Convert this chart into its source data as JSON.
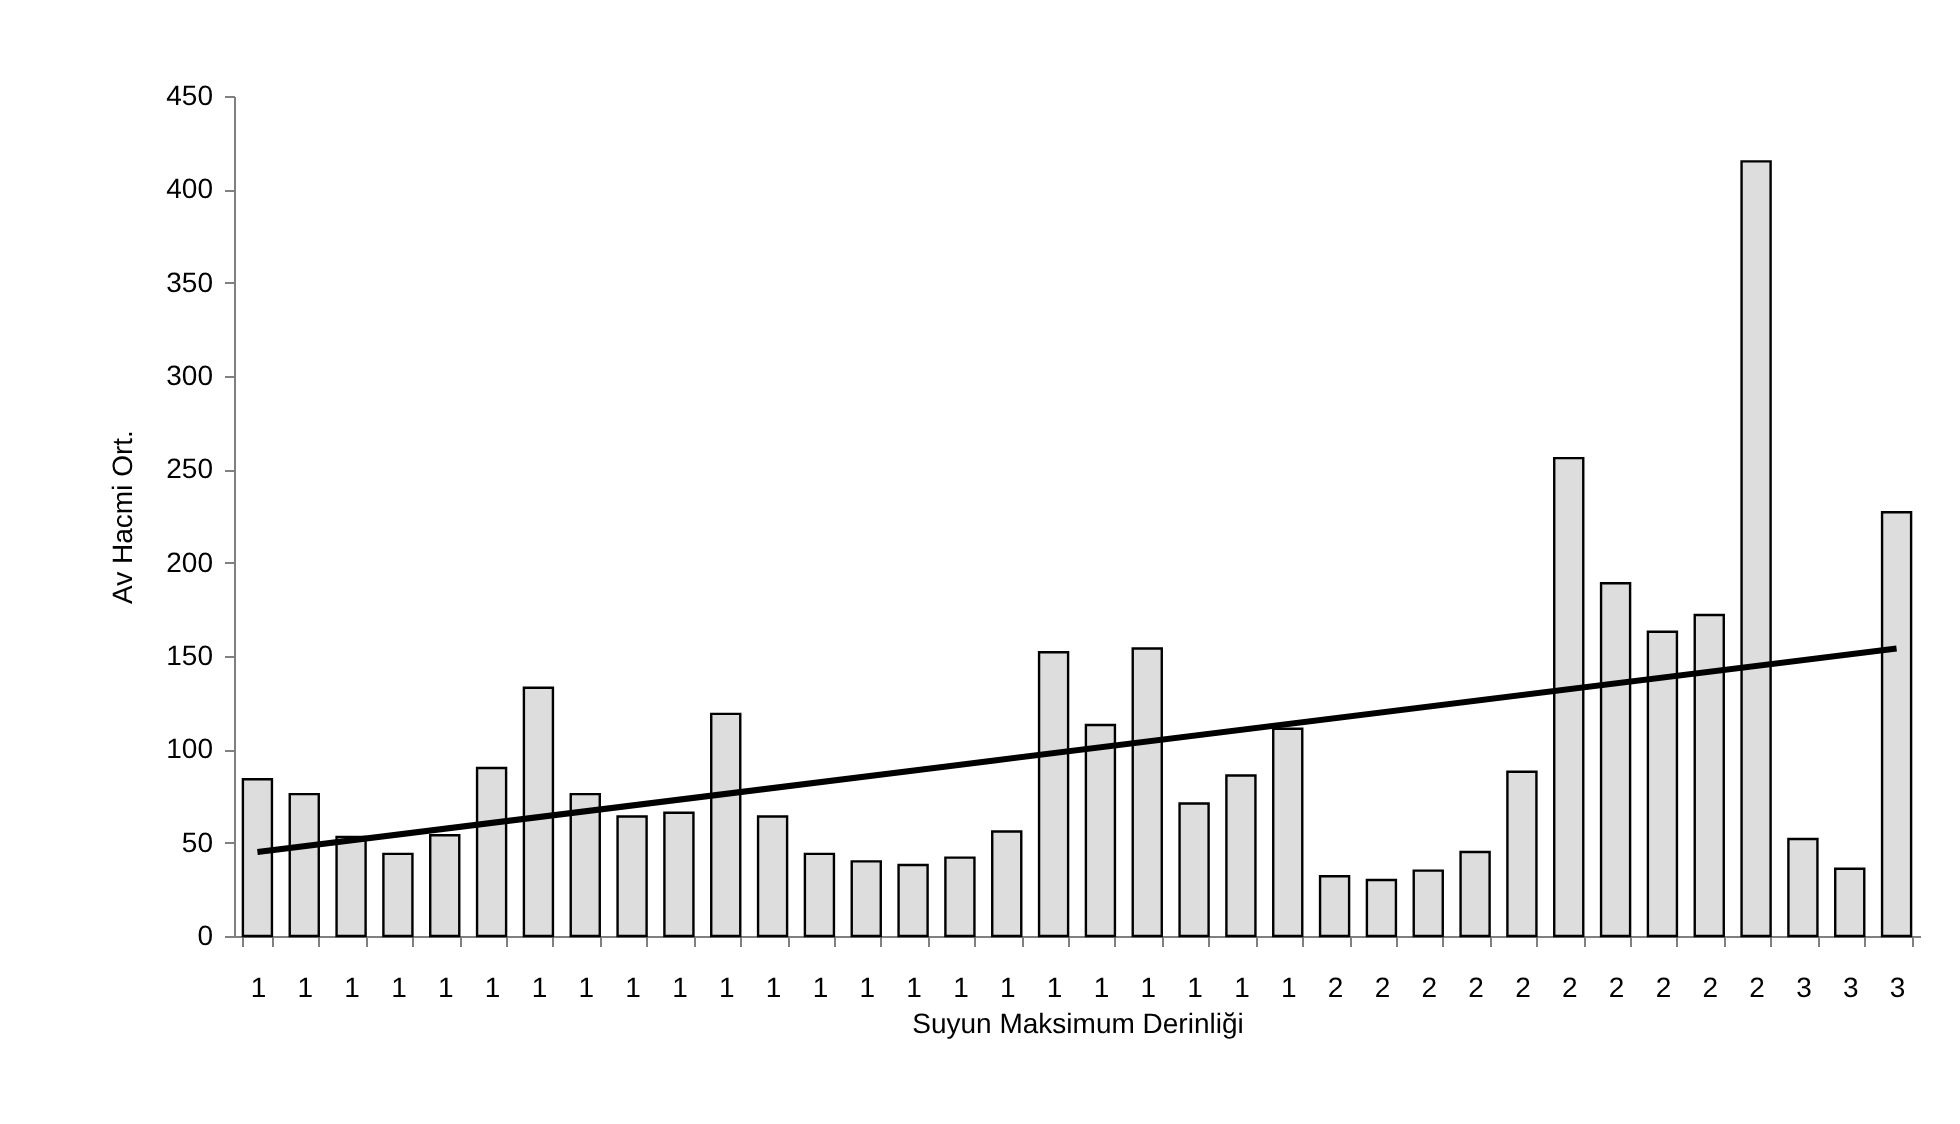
{
  "chart_data": {
    "type": "bar",
    "xlabel": "Suyun Maksimum Derinliği",
    "ylabel": "Av Hacmi Ort.",
    "categories": [
      "1",
      "1",
      "1",
      "1",
      "1",
      "1",
      "1",
      "1",
      "1",
      "1",
      "1",
      "1",
      "1",
      "1",
      "1",
      "1",
      "1",
      "1",
      "1",
      "1",
      "1",
      "1",
      "1",
      "2",
      "2",
      "2",
      "2",
      "2",
      "2",
      "2",
      "2",
      "2",
      "2",
      "3",
      "3",
      "3"
    ],
    "series": [
      {
        "color": "#dddddd",
        "values": [
          84,
          76,
          53,
          44,
          54,
          90,
          133,
          76,
          64,
          66,
          119,
          64,
          44,
          40,
          38,
          42,
          56,
          152,
          113,
          154,
          71,
          86,
          111,
          32,
          30,
          35,
          45,
          88,
          256,
          189,
          163,
          172,
          415,
          52,
          36,
          227
        ]
      },
      {
        "type": "line",
        "color": "#000000",
        "values": [
          45,
          null,
          null,
          null,
          null,
          null,
          null,
          null,
          null,
          null,
          null,
          null,
          null,
          null,
          null,
          null,
          null,
          null,
          null,
          null,
          null,
          null,
          null,
          null,
          null,
          null,
          null,
          null,
          null,
          null,
          null,
          null,
          null,
          null,
          null,
          154
        ]
      }
    ],
    "ylim": [
      0,
      450
    ],
    "yticks": [
      0,
      50,
      100,
      150,
      200,
      250,
      300,
      350,
      400,
      450
    ]
  }
}
